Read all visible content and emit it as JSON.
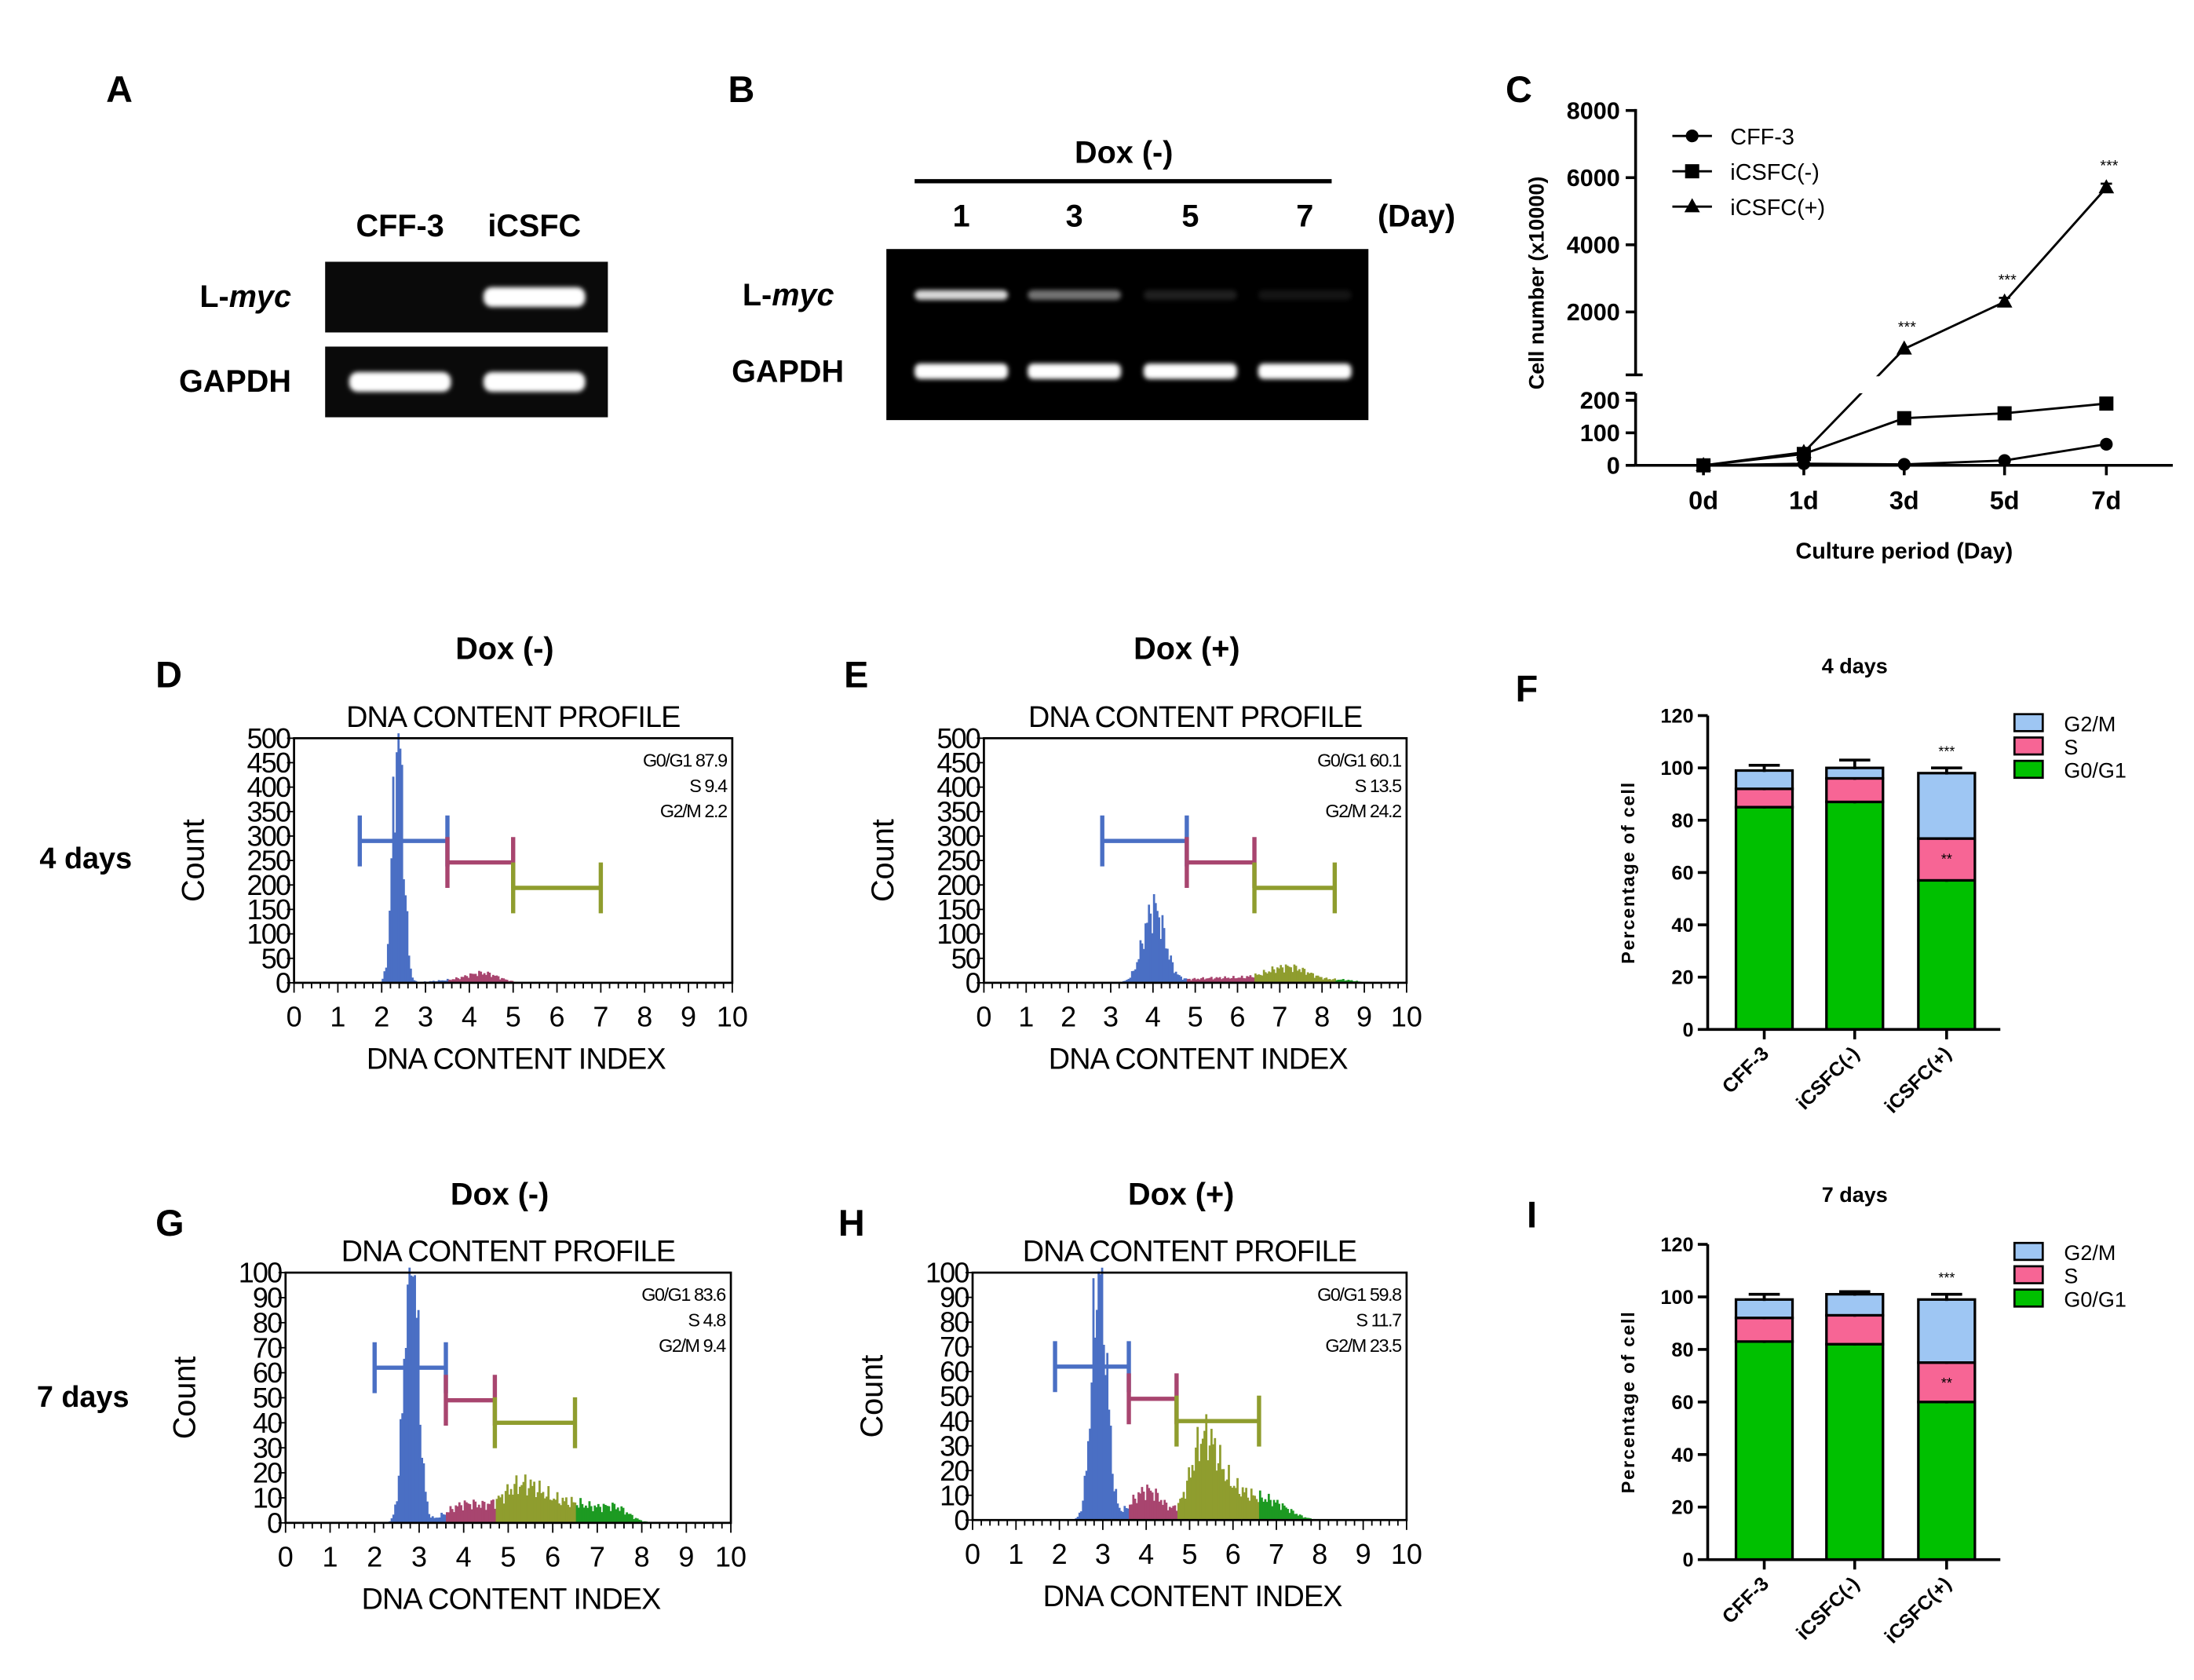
{
  "panel_labels": [
    "A",
    "B",
    "C",
    "D",
    "E",
    "F",
    "G",
    "H",
    "I"
  ],
  "row_labels": [
    "4 days",
    "7 days"
  ],
  "gel_a": {
    "lanes": [
      "CFF-3",
      "iCSFC"
    ],
    "rows": [
      {
        "prefix": "L-",
        "italic": "myc",
        "band_intensity": [
          0,
          1
        ]
      },
      {
        "prefix": "GAPDH",
        "italic": "",
        "band_intensity": [
          1,
          1
        ]
      }
    ]
  },
  "gel_b": {
    "condition": "Dox (-)",
    "lanes": [
      "1",
      "3",
      "5",
      "7"
    ],
    "unit": "(Day)",
    "rows": [
      {
        "prefix": "L-",
        "italic": "myc",
        "band_intensity": [
          0.85,
          0.45,
          0.12,
          0.08
        ]
      },
      {
        "prefix": "GAPDH",
        "italic": "",
        "band_intensity": [
          1,
          1,
          1,
          1
        ]
      }
    ]
  },
  "chart_data": [
    {
      "id": "C",
      "type": "line",
      "xlabel": "Culture period (Day)",
      "ylabel": "Cell number (x10000)",
      "categories": [
        "0d",
        "1d",
        "3d",
        "5d",
        "7d"
      ],
      "yticks_upper": [
        "2000",
        "4000",
        "6000",
        "8000"
      ],
      "yticks_lower": [
        "0",
        "100",
        "200"
      ],
      "ylim": [
        0,
        8000
      ],
      "axis_break": [
        200,
        1000
      ],
      "legend_position": "top-left",
      "series": [
        {
          "name": "CFF-3",
          "marker": "circle",
          "values": [
            0,
            5,
            3,
            15,
            65
          ]
        },
        {
          "name": "iCSFC(-)",
          "marker": "square",
          "values": [
            0,
            35,
            145,
            160,
            190
          ]
        },
        {
          "name": "iCSFC(+)",
          "marker": "triangle",
          "values": [
            0,
            40,
            900,
            2300,
            5700
          ],
          "errors": [
            0,
            0,
            0,
            120,
            120
          ],
          "annotations": [
            "",
            "",
            "***",
            "***",
            "***"
          ]
        }
      ]
    },
    {
      "id": "D",
      "type": "bar",
      "subtype": "histogram",
      "header": "Dox (-)",
      "title": "DNA CONTENT PROFILE",
      "xlabel": "DNA CONTENT INDEX",
      "ylabel": "Count",
      "xlim": [
        0,
        10
      ],
      "ylim": [
        0,
        500
      ],
      "xticks": [
        "0",
        "1",
        "2",
        "3",
        "4",
        "5",
        "6",
        "7",
        "8",
        "9",
        "10"
      ],
      "yticks": [
        "0",
        "50",
        "100",
        "150",
        "200",
        "250",
        "300",
        "350",
        "400",
        "450",
        "500"
      ],
      "stats": [
        "G0/G1 87.9",
        "S 9.4",
        "G2/M 2.2"
      ],
      "gates": [
        {
          "phase": "G0/G1",
          "range": [
            1.5,
            3.5
          ],
          "level": 290
        },
        {
          "phase": "S",
          "range": [
            3.5,
            5.0
          ],
          "level": 246
        },
        {
          "phase": "G2/M",
          "range": [
            5.0,
            7.0
          ],
          "level": 194
        }
      ],
      "peaks": [
        {
          "center": 2.35,
          "count": 520,
          "sd": 0.12
        },
        {
          "center": 4.3,
          "count": 18,
          "sd": 0.35
        },
        {
          "center": 3.6,
          "count": 5,
          "sd": 0.5
        }
      ]
    },
    {
      "id": "E",
      "type": "bar",
      "subtype": "histogram",
      "header": "Dox (+)",
      "title": "DNA CONTENT PROFILE",
      "xlabel": "DNA CONTENT INDEX",
      "ylabel": "Count",
      "xlim": [
        0,
        10
      ],
      "ylim": [
        0,
        500
      ],
      "xticks": [
        "0",
        "1",
        "2",
        "3",
        "4",
        "5",
        "6",
        "7",
        "8",
        "9",
        "10"
      ],
      "yticks": [
        "0",
        "50",
        "100",
        "150",
        "200",
        "250",
        "300",
        "350",
        "400",
        "450",
        "500"
      ],
      "stats": [
        "G0/G1 60.1",
        "S 13.5",
        "G2/M 24.2"
      ],
      "gates": [
        {
          "phase": "G0/G1",
          "range": [
            2.8,
            4.8
          ],
          "level": 290
        },
        {
          "phase": "S",
          "range": [
            4.8,
            6.4
          ],
          "level": 246
        },
        {
          "phase": "G2/M",
          "range": [
            6.4,
            8.3
          ],
          "level": 194
        }
      ],
      "peaks": [
        {
          "center": 4.0,
          "count": 150,
          "sd": 0.25
        },
        {
          "center": 5.6,
          "count": 10,
          "sd": 0.9
        },
        {
          "center": 7.2,
          "count": 30,
          "sd": 0.5
        },
        {
          "center": 8.5,
          "count": 5,
          "sd": 0.3
        }
      ]
    },
    {
      "id": "F",
      "type": "bar",
      "subtype": "stacked",
      "title": "4 days",
      "ylabel": "Percentage of cell",
      "xlabel": "",
      "ylim": [
        0,
        120
      ],
      "yticks": [
        "0",
        "20",
        "40",
        "60",
        "80",
        "100",
        "120"
      ],
      "categories": [
        "CFF-3",
        "iCSFC(-)",
        "iCSFC(+)"
      ],
      "legend_position": "top-right",
      "series": [
        {
          "name": "G0/G1",
          "color": "#00c000",
          "values": [
            85,
            87,
            57
          ],
          "errors": [
            4,
            2,
            8
          ]
        },
        {
          "name": "S",
          "color": "#f76595",
          "values": [
            7,
            9,
            16
          ],
          "errors": [
            2,
            2,
            2
          ]
        },
        {
          "name": "G2/M",
          "color": "#9ec6f3",
          "values": [
            7,
            4,
            25
          ],
          "errors": [
            2,
            3,
            2
          ]
        }
      ],
      "annotations": [
        {
          "category": "iCSFC(+)",
          "series": "S",
          "text": "**"
        },
        {
          "category": "iCSFC(+)",
          "series": "G2/M",
          "text": "***"
        }
      ]
    },
    {
      "id": "G",
      "type": "bar",
      "subtype": "histogram",
      "header": "Dox (-)",
      "title": "DNA CONTENT PROFILE",
      "xlabel": "DNA CONTENT INDEX",
      "ylabel": "Count",
      "xlim": [
        0,
        10
      ],
      "ylim": [
        0,
        100
      ],
      "xticks": [
        "0",
        "1",
        "2",
        "3",
        "4",
        "5",
        "6",
        "7",
        "8",
        "9",
        "10"
      ],
      "yticks": [
        "0",
        "10",
        "20",
        "30",
        "40",
        "50",
        "60",
        "70",
        "80",
        "90",
        "100"
      ],
      "stats": [
        "G0/G1 83.6",
        "S 4.8",
        "G2/M 9.4"
      ],
      "gates": [
        {
          "phase": "G0/G1",
          "range": [
            2.0,
            3.6
          ],
          "level": 62
        },
        {
          "phase": "S",
          "range": [
            3.6,
            4.7
          ],
          "level": 49
        },
        {
          "phase": "G2/M",
          "range": [
            4.7,
            6.5
          ],
          "level": 40
        }
      ],
      "peaks": [
        {
          "center": 2.8,
          "count": 115,
          "sd": 0.15
        },
        {
          "center": 4.0,
          "count": 7,
          "sd": 0.4
        },
        {
          "center": 5.3,
          "count": 15,
          "sd": 0.5
        },
        {
          "center": 6.5,
          "count": 7,
          "sd": 0.5
        },
        {
          "center": 7.4,
          "count": 5,
          "sd": 0.3
        }
      ]
    },
    {
      "id": "H",
      "type": "bar",
      "subtype": "histogram",
      "header": "Dox (+)",
      "title": "DNA CONTENT PROFILE",
      "xlabel": "DNA CONTENT INDEX",
      "ylabel": "Count",
      "xlim": [
        0,
        10
      ],
      "ylim": [
        0,
        100
      ],
      "xticks": [
        "0",
        "1",
        "2",
        "3",
        "4",
        "5",
        "6",
        "7",
        "8",
        "9",
        "10"
      ],
      "yticks": [
        "0",
        "10",
        "20",
        "30",
        "40",
        "50",
        "60",
        "70",
        "80",
        "90",
        "100"
      ],
      "stats": [
        "G0/G1 59.8",
        "S 11.7",
        "G2/M 23.5"
      ],
      "gates": [
        {
          "phase": "G0/G1",
          "range": [
            1.9,
            3.6
          ],
          "level": 62
        },
        {
          "phase": "S",
          "range": [
            3.6,
            4.7
          ],
          "level": 49
        },
        {
          "phase": "G2/M",
          "range": [
            4.7,
            6.6
          ],
          "level": 40
        }
      ],
      "peaks": [
        {
          "center": 2.9,
          "count": 102,
          "sd": 0.17
        },
        {
          "center": 4.0,
          "count": 12,
          "sd": 0.35
        },
        {
          "center": 5.3,
          "count": 28,
          "sd": 0.3
        },
        {
          "center": 5.9,
          "count": 12,
          "sd": 0.5
        },
        {
          "center": 6.9,
          "count": 6,
          "sd": 0.4
        }
      ]
    },
    {
      "id": "I",
      "type": "bar",
      "subtype": "stacked",
      "title": "7 days",
      "ylabel": "Percentage of cell",
      "xlabel": "",
      "ylim": [
        0,
        120
      ],
      "yticks": [
        "0",
        "20",
        "40",
        "60",
        "80",
        "100",
        "120"
      ],
      "categories": [
        "CFF-3",
        "iCSFC(-)",
        "iCSFC(+)"
      ],
      "legend_position": "top-right",
      "series": [
        {
          "name": "G0/G1",
          "color": "#00c000",
          "values": [
            83,
            82,
            60
          ],
          "errors": [
            3,
            1,
            5
          ]
        },
        {
          "name": "S",
          "color": "#f76595",
          "values": [
            9,
            11,
            15
          ],
          "errors": [
            2,
            2,
            2
          ]
        },
        {
          "name": "G2/M",
          "color": "#9ec6f3",
          "values": [
            7,
            8,
            24
          ],
          "errors": [
            2,
            1,
            2
          ]
        }
      ],
      "annotations": [
        {
          "category": "iCSFC(+)",
          "series": "S",
          "text": "**"
        },
        {
          "category": "iCSFC(+)",
          "series": "G2/M",
          "text": "***"
        }
      ]
    }
  ]
}
